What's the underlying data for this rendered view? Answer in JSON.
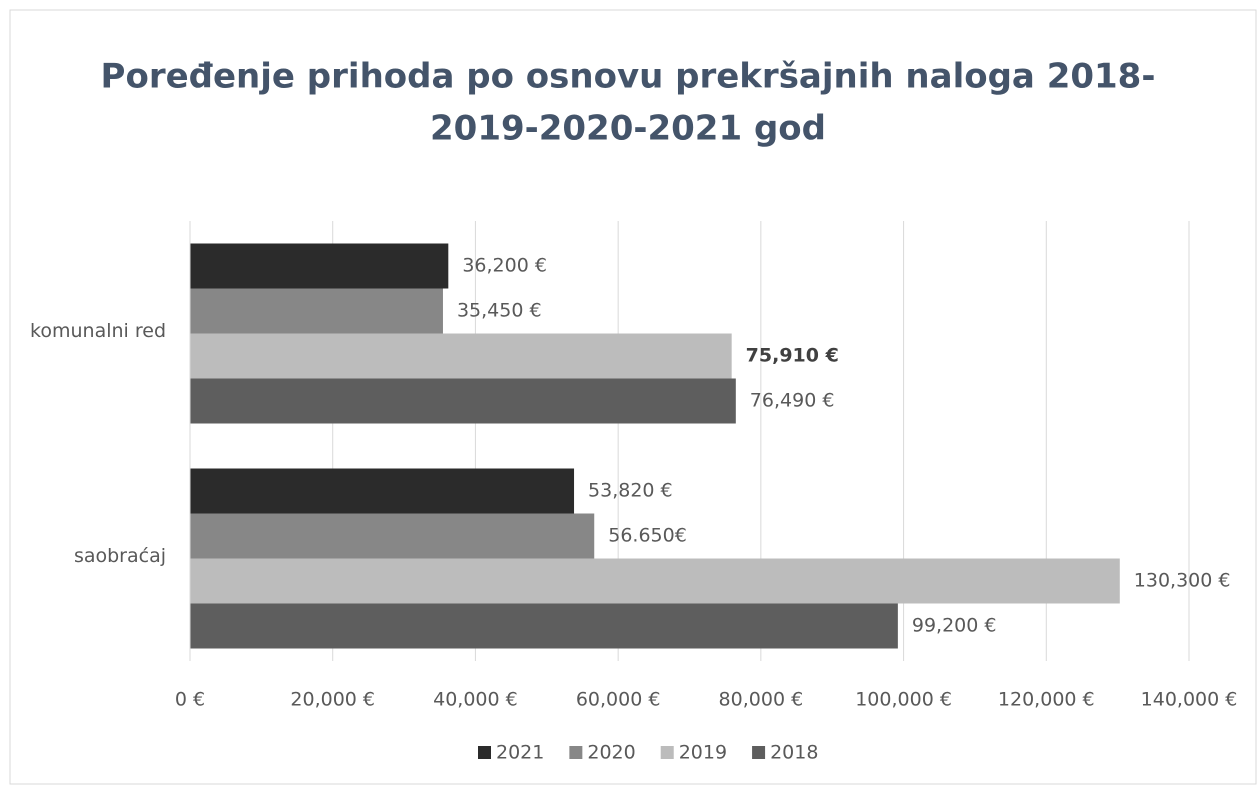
{
  "chart_data": {
    "type": "hbar",
    "title": [
      "Poređenje prihoda po osnovu prekršajnih naloga 2018-",
      "2019-2020-2021 god"
    ],
    "categories": [
      "komunalni red",
      "saobraćaj"
    ],
    "series": [
      {
        "name": "2021",
        "color": "#2b2b2b",
        "values": [
          36200,
          53820
        ],
        "value_labels": [
          "36,200 €",
          "53,820 €"
        ]
      },
      {
        "name": "2020",
        "color": "#878787",
        "values": [
          35450,
          56650
        ],
        "value_labels": [
          "35,450 €",
          "56.650€"
        ]
      },
      {
        "name": "2019",
        "color": "#bcbcbc",
        "values": [
          75910,
          130300
        ],
        "value_labels": [
          "75,910 €",
          "130,300 €"
        ]
      },
      {
        "name": "2018",
        "color": "#5e5e5e",
        "values": [
          76490,
          99200
        ],
        "value_labels": [
          "76,490 €",
          "99,200 €"
        ]
      }
    ],
    "xlim": [
      0,
      140000
    ],
    "xticks": [
      {
        "value": 0,
        "label": "0 €"
      },
      {
        "value": 20000,
        "label": "20,000 €"
      },
      {
        "value": 40000,
        "label": "40,000 €"
      },
      {
        "value": 60000,
        "label": "60,000 €"
      },
      {
        "value": 80000,
        "label": "80,000 €"
      },
      {
        "value": 100000,
        "label": "100,000 €"
      },
      {
        "value": 120000,
        "label": "120,000 €"
      },
      {
        "value": 140000,
        "label": "140,000 €"
      }
    ],
    "grid": true,
    "legend": "bottom"
  }
}
